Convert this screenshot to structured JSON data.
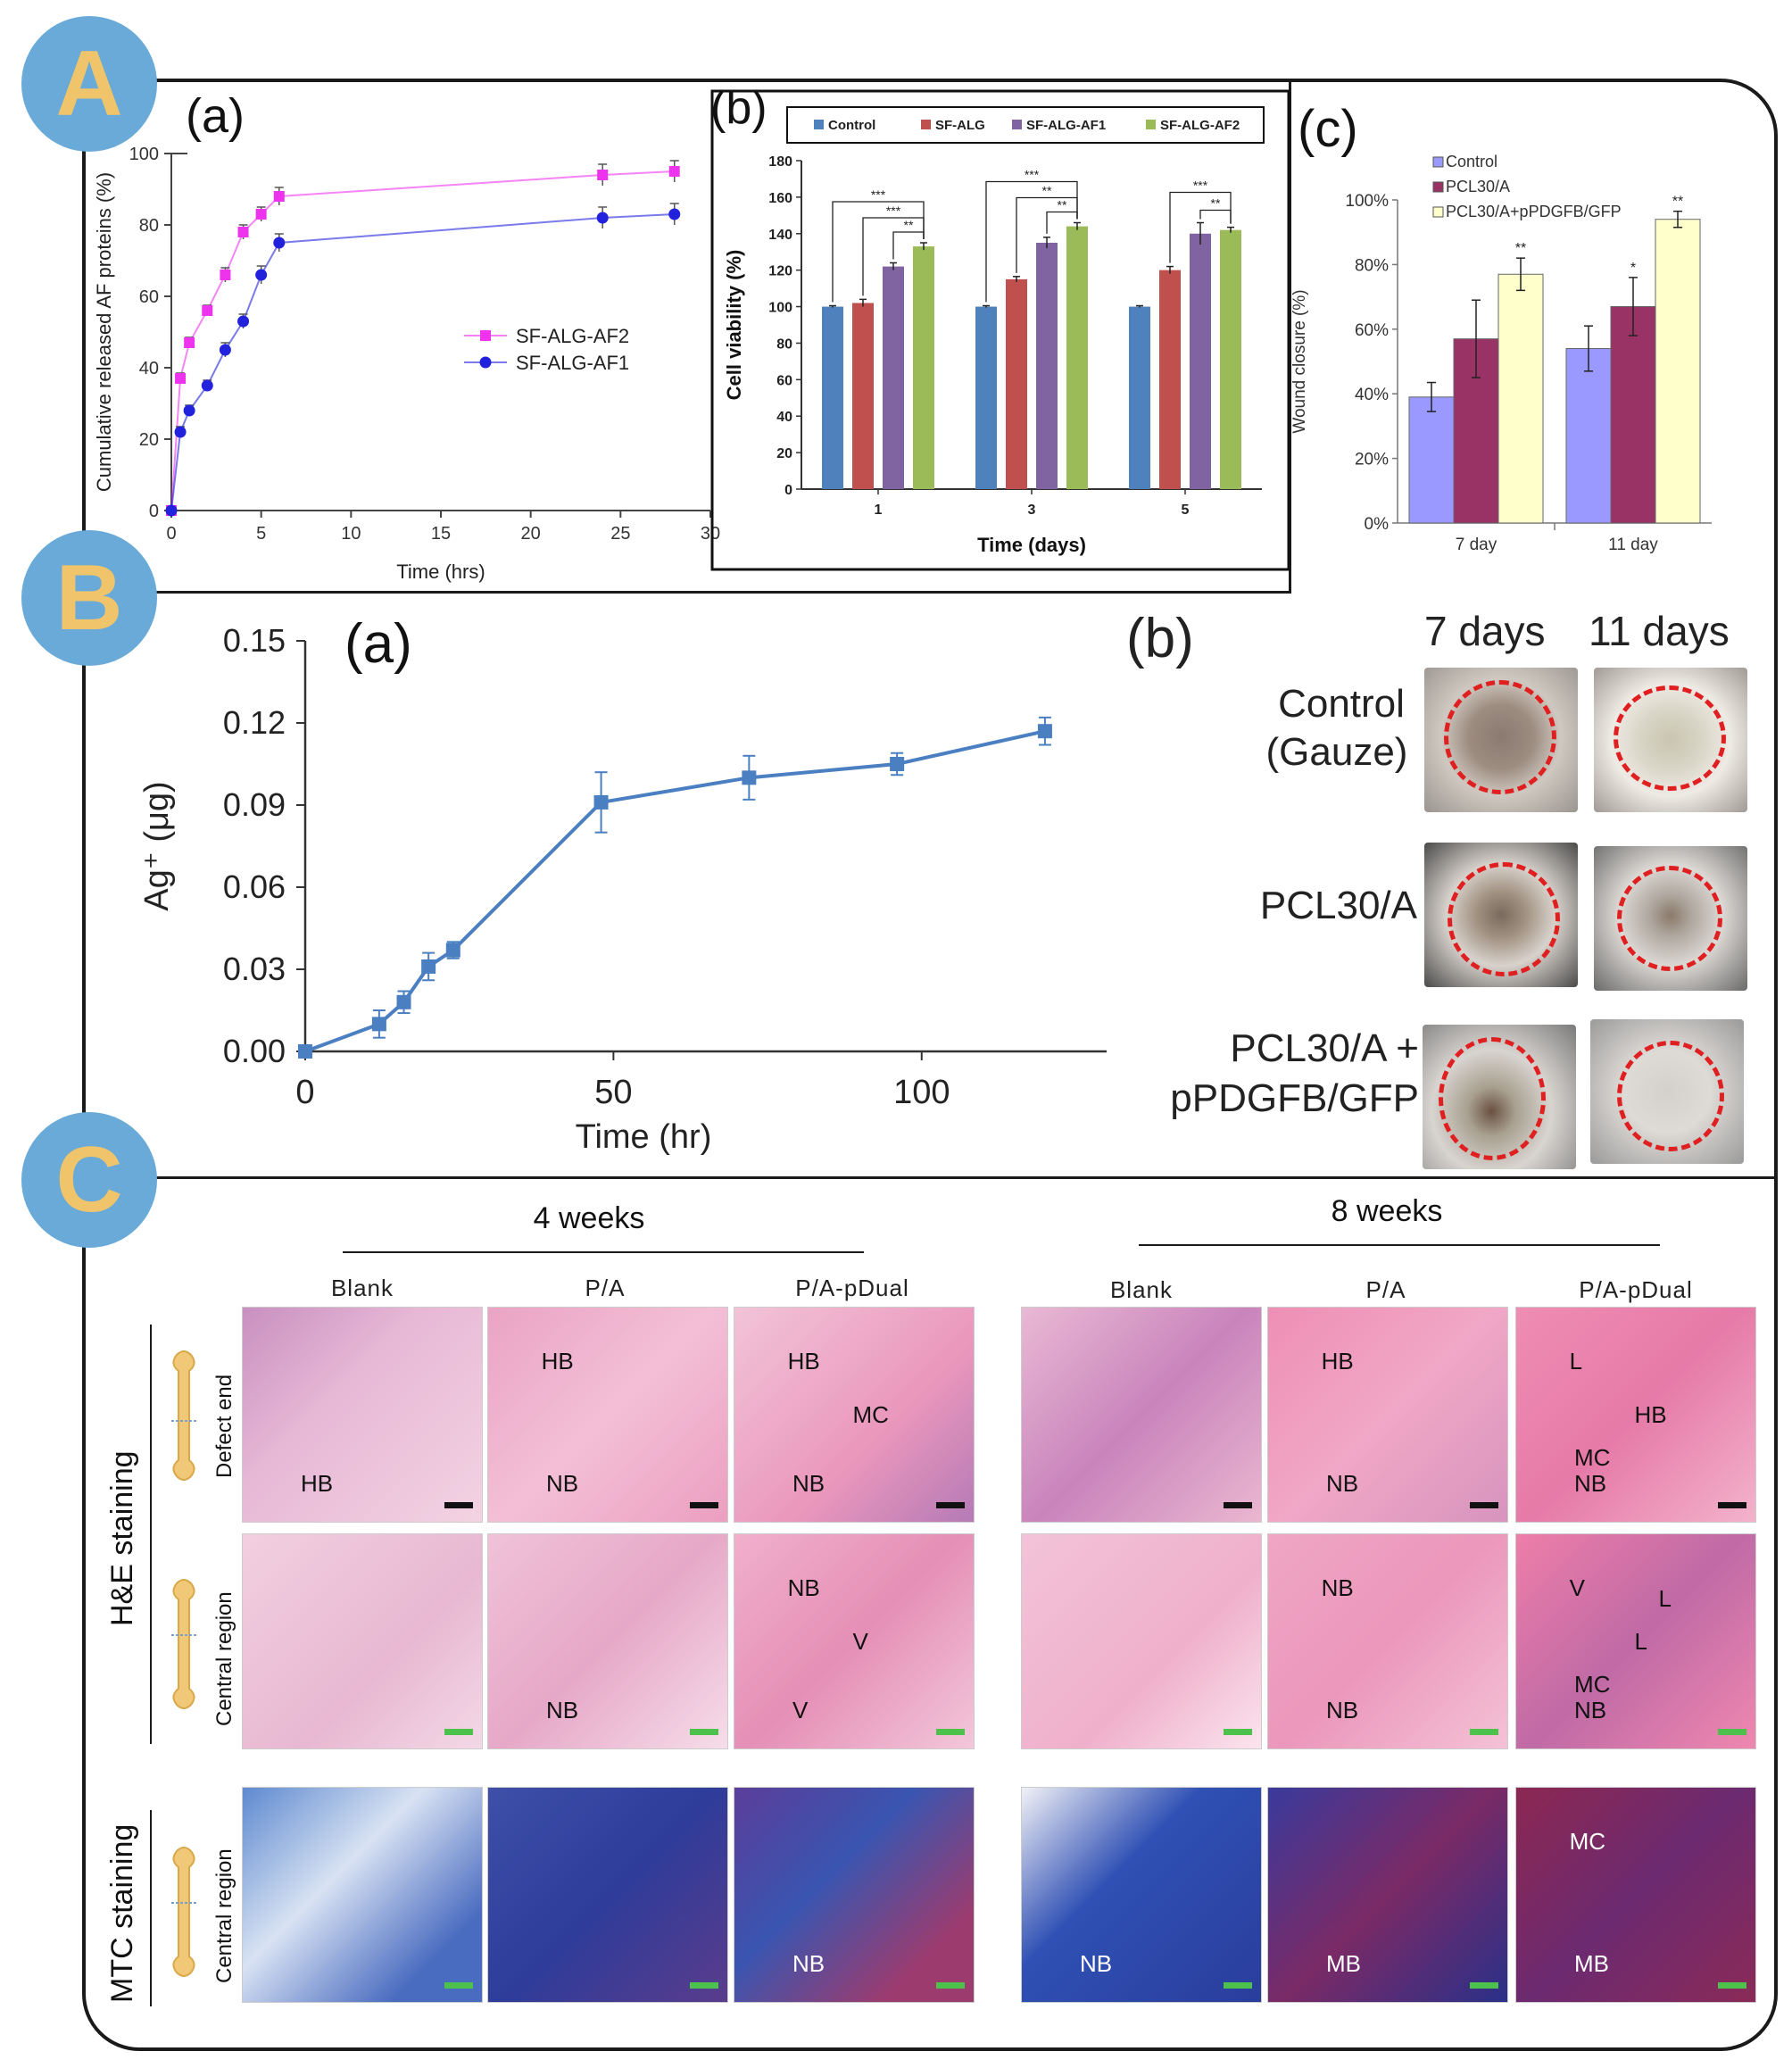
{
  "badges": {
    "a": "A",
    "b": "B",
    "c": "C"
  },
  "chart_data": [
    {
      "type": "line",
      "panel": "(a)",
      "xlabel": "Time (hrs)",
      "ylabel": "Cumulative released AF proteins (%)",
      "xlim": [
        0,
        30
      ],
      "ylim": [
        0,
        100
      ],
      "xticks": [
        0,
        5,
        10,
        15,
        20,
        25,
        30
      ],
      "yticks": [
        0,
        20,
        40,
        60,
        80,
        100
      ],
      "legend_position": "center-right",
      "series": [
        {
          "name": "SF-ALG-AF2",
          "color": "#ee33ee",
          "x": [
            0,
            0.5,
            1,
            2,
            3,
            4,
            5,
            6,
            24,
            28
          ],
          "y": [
            0,
            37,
            47,
            56,
            66,
            78,
            83,
            88,
            94,
            95
          ],
          "err": [
            0,
            1.5,
            1.5,
            1.5,
            2,
            2,
            2,
            2.5,
            3,
            3
          ]
        },
        {
          "name": "SF-ALG-AF1",
          "color": "#2222dd",
          "x": [
            0,
            0.5,
            1,
            2,
            3,
            4,
            5,
            6,
            24,
            28
          ],
          "y": [
            0,
            22,
            28,
            35,
            45,
            53,
            66,
            75,
            82,
            83
          ],
          "err": [
            0,
            1.5,
            1.5,
            1.5,
            2,
            2,
            2.5,
            2.5,
            3,
            3
          ]
        }
      ]
    },
    {
      "type": "bar",
      "panel": "(b)",
      "xlabel": "Time (days)",
      "ylabel": "Cell viability (%)",
      "ylim": [
        0,
        180
      ],
      "yticks": [
        0,
        20,
        40,
        60,
        80,
        100,
        120,
        140,
        160,
        180
      ],
      "categories": [
        "1",
        "3",
        "5"
      ],
      "legend_position": "top",
      "series": [
        {
          "name": "Control",
          "color": "#4f81bd",
          "values": [
            100,
            100,
            100
          ],
          "err": [
            0.5,
            0.5,
            0.5
          ]
        },
        {
          "name": "SF-ALG",
          "color": "#c0504d",
          "values": [
            102,
            115,
            120
          ],
          "err": [
            2,
            1.5,
            2
          ]
        },
        {
          "name": "SF-ALG-AF1",
          "color": "#8064a2",
          "values": [
            122,
            135,
            140
          ],
          "err": [
            2,
            3,
            6
          ]
        },
        {
          "name": "SF-ALG-AF2",
          "color": "#9bbb59",
          "values": [
            133,
            144,
            142
          ],
          "err": [
            2,
            2,
            1.5
          ]
        }
      ],
      "significance": [
        {
          "cat": 0,
          "labels": [
            "***",
            "***",
            "**"
          ]
        },
        {
          "cat": 1,
          "labels": [
            "***",
            "**",
            "**"
          ]
        },
        {
          "cat": 2,
          "labels": [
            "***",
            "**"
          ]
        }
      ]
    },
    {
      "type": "bar",
      "panel": "(c)",
      "ylabel": "Wound closure (%)",
      "ylim": [
        0,
        100
      ],
      "yticks": [
        "0%",
        "20%",
        "40%",
        "60%",
        "80%",
        "100%"
      ],
      "categories": [
        "7 day",
        "11 day"
      ],
      "legend_position": "top-left",
      "series": [
        {
          "name": "Control",
          "color": "#9999ff",
          "values": [
            39,
            54
          ],
          "err": [
            4.5,
            7
          ],
          "stars": [
            "",
            ""
          ]
        },
        {
          "name": "PCL30/A",
          "color": "#993366",
          "values": [
            57,
            67
          ],
          "err": [
            12,
            9
          ],
          "stars": [
            "",
            "*"
          ]
        },
        {
          "name": "PCL30/A+pPDGFB/GFP",
          "color": "#ffffcc",
          "values": [
            77,
            94
          ],
          "err": [
            5,
            2.5
          ],
          "stars": [
            "**",
            "**"
          ]
        }
      ]
    },
    {
      "type": "line",
      "panel": "(a)",
      "xlabel": "Time (hr)",
      "ylabel": "Ag⁺ (μg)",
      "xlim": [
        0,
        130
      ],
      "ylim": [
        0,
        0.15
      ],
      "xticks": [
        "0",
        "50",
        "100"
      ],
      "yticks": [
        "0.00",
        "0.03",
        "0.06",
        "0.09",
        "0.12",
        "0.15"
      ],
      "series": [
        {
          "name": "",
          "color": "#4a7fc1",
          "x": [
            0,
            12,
            16,
            20,
            24,
            48,
            72,
            96,
            120
          ],
          "y": [
            0,
            0.01,
            0.018,
            0.031,
            0.037,
            0.091,
            0.1,
            0.105,
            0.117
          ],
          "err": [
            0,
            0.005,
            0.004,
            0.005,
            0.003,
            0.011,
            0.008,
            0.004,
            0.005
          ]
        }
      ]
    }
  ],
  "wound": {
    "panel": "(b)",
    "col_headers": [
      "7 days",
      "11 days"
    ],
    "rows": [
      {
        "label_1": "Control",
        "label_2": "(Gauze)"
      },
      {
        "label_1": "PCL30/A",
        "label_2": ""
      },
      {
        "label_1": "PCL30/A +",
        "label_2": "pPDGFB/GFP"
      }
    ]
  },
  "histology": {
    "group_4w": "4 weeks",
    "group_8w": "8 weeks",
    "col_heads": [
      "Blank",
      "P/A",
      "P/A-pDual",
      "Blank",
      "P/A",
      "P/A-pDual"
    ],
    "he_label": "H&E staining",
    "mtc_label": "MTC staining",
    "row_sub": [
      "Defect end",
      "Central region",
      "Central region"
    ],
    "tiles": [
      [
        "HB",
        "NB|HB",
        "NB|HB|MC",
        "",
        "NB|HB",
        "NB|L|HB|MC"
      ],
      [
        "",
        "NB",
        "V|NB|V",
        "",
        "NB|NB",
        "NB|V|L|MC|L"
      ],
      [
        "",
        "",
        "NB",
        "NB",
        "MB",
        "MB|MC"
      ]
    ]
  }
}
